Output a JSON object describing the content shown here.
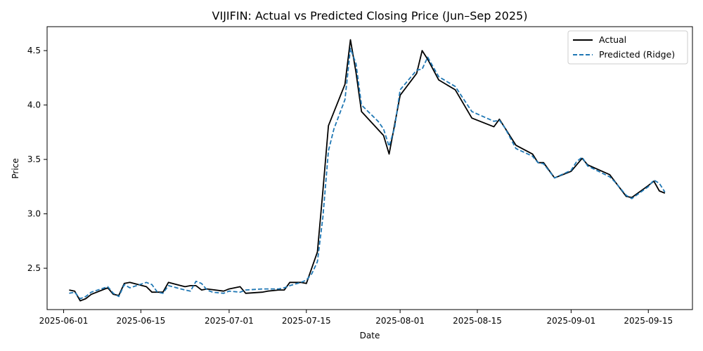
{
  "chart_data": {
    "type": "line",
    "title": "VIJIFIN: Actual vs Predicted Closing Price (Jun–Sep 2025)",
    "xlabel": "Date",
    "ylabel": "Price",
    "x_range": [
      "2025-05-29",
      "2025-09-23"
    ],
    "ylim": [
      2.12,
      4.72
    ],
    "x_ticks": [
      "2025-06-01",
      "2025-06-15",
      "2025-07-01",
      "2025-07-15",
      "2025-08-01",
      "2025-08-15",
      "2025-09-01",
      "2025-09-15"
    ],
    "y_ticks": [
      2.5,
      3.0,
      3.5,
      4.0,
      4.5
    ],
    "y_tick_labels": [
      "2.5",
      "3.0",
      "3.5",
      "4.0",
      "4.5"
    ],
    "grid": false,
    "legend_position": "top-right",
    "series": [
      {
        "name": "Actual",
        "color": "#000000",
        "style": "solid",
        "points": [
          [
            "2025-06-02",
            2.3
          ],
          [
            "2025-06-03",
            2.29
          ],
          [
            "2025-06-04",
            2.2
          ],
          [
            "2025-06-05",
            2.22
          ],
          [
            "2025-06-06",
            2.26
          ],
          [
            "2025-06-09",
            2.32
          ],
          [
            "2025-06-10",
            2.26
          ],
          [
            "2025-06-11",
            2.25
          ],
          [
            "2025-06-12",
            2.36
          ],
          [
            "2025-06-13",
            2.37
          ],
          [
            "2025-06-16",
            2.33
          ],
          [
            "2025-06-17",
            2.28
          ],
          [
            "2025-06-18",
            2.28
          ],
          [
            "2025-06-19",
            2.28
          ],
          [
            "2025-06-20",
            2.37
          ],
          [
            "2025-06-23",
            2.33
          ],
          [
            "2025-06-24",
            2.34
          ],
          [
            "2025-06-25",
            2.34
          ],
          [
            "2025-06-26",
            2.3
          ],
          [
            "2025-06-27",
            2.31
          ],
          [
            "2025-06-30",
            2.29
          ],
          [
            "2025-07-01",
            2.31
          ],
          [
            "2025-07-03",
            2.33
          ],
          [
            "2025-07-04",
            2.27
          ],
          [
            "2025-07-07",
            2.28
          ],
          [
            "2025-07-08",
            2.29
          ],
          [
            "2025-07-10",
            2.3
          ],
          [
            "2025-07-11",
            2.3
          ],
          [
            "2025-07-12",
            2.37
          ],
          [
            "2025-07-14",
            2.37
          ],
          [
            "2025-07-15",
            2.36
          ],
          [
            "2025-07-17",
            2.65
          ],
          [
            "2025-07-18",
            3.21
          ],
          [
            "2025-07-19",
            3.81
          ],
          [
            "2025-07-22",
            4.19
          ],
          [
            "2025-07-23",
            4.6
          ],
          [
            "2025-07-24",
            4.3
          ],
          [
            "2025-07-25",
            3.94
          ],
          [
            "2025-07-29",
            3.72
          ],
          [
            "2025-07-30",
            3.55
          ],
          [
            "2025-08-01",
            4.09
          ],
          [
            "2025-08-04",
            4.29
          ],
          [
            "2025-08-05",
            4.5
          ],
          [
            "2025-08-06",
            4.42
          ],
          [
            "2025-08-08",
            4.23
          ],
          [
            "2025-08-11",
            4.14
          ],
          [
            "2025-08-14",
            3.88
          ],
          [
            "2025-08-18",
            3.8
          ],
          [
            "2025-08-19",
            3.87
          ],
          [
            "2025-08-22",
            3.63
          ],
          [
            "2025-08-25",
            3.55
          ],
          [
            "2025-08-26",
            3.47
          ],
          [
            "2025-08-27",
            3.47
          ],
          [
            "2025-08-29",
            3.33
          ],
          [
            "2025-09-01",
            3.39
          ],
          [
            "2025-09-03",
            3.51
          ],
          [
            "2025-09-04",
            3.45
          ],
          [
            "2025-09-08",
            3.36
          ],
          [
            "2025-09-11",
            3.16
          ],
          [
            "2025-09-12",
            3.15
          ],
          [
            "2025-09-15",
            3.26
          ],
          [
            "2025-09-16",
            3.3
          ],
          [
            "2025-09-17",
            3.21
          ],
          [
            "2025-09-18",
            3.19
          ]
        ]
      },
      {
        "name": "Predicted (Ridge)",
        "color": "#1f77b4",
        "style": "dashed",
        "points": [
          [
            "2025-06-02",
            2.27
          ],
          [
            "2025-06-03",
            2.28
          ],
          [
            "2025-06-04",
            2.22
          ],
          [
            "2025-06-05",
            2.24
          ],
          [
            "2025-06-06",
            2.28
          ],
          [
            "2025-06-09",
            2.33
          ],
          [
            "2025-06-10",
            2.27
          ],
          [
            "2025-06-11",
            2.24
          ],
          [
            "2025-06-12",
            2.35
          ],
          [
            "2025-06-13",
            2.32
          ],
          [
            "2025-06-16",
            2.37
          ],
          [
            "2025-06-17",
            2.35
          ],
          [
            "2025-06-18",
            2.28
          ],
          [
            "2025-06-19",
            2.27
          ],
          [
            "2025-06-20",
            2.34
          ],
          [
            "2025-06-23",
            2.3
          ],
          [
            "2025-06-24",
            2.29
          ],
          [
            "2025-06-25",
            2.38
          ],
          [
            "2025-06-26",
            2.36
          ],
          [
            "2025-06-27",
            2.3
          ],
          [
            "2025-06-28",
            2.28
          ],
          [
            "2025-06-30",
            2.27
          ],
          [
            "2025-07-01",
            2.29
          ],
          [
            "2025-07-03",
            2.28
          ],
          [
            "2025-07-04",
            2.3
          ],
          [
            "2025-07-07",
            2.31
          ],
          [
            "2025-07-08",
            2.31
          ],
          [
            "2025-07-10",
            2.31
          ],
          [
            "2025-07-11",
            2.32
          ],
          [
            "2025-07-12",
            2.34
          ],
          [
            "2025-07-14",
            2.37
          ],
          [
            "2025-07-15",
            2.39
          ],
          [
            "2025-07-16",
            2.45
          ],
          [
            "2025-07-17",
            2.56
          ],
          [
            "2025-07-18",
            2.97
          ],
          [
            "2025-07-19",
            3.58
          ],
          [
            "2025-07-20",
            3.78
          ],
          [
            "2025-07-22",
            4.05
          ],
          [
            "2025-07-23",
            4.52
          ],
          [
            "2025-07-24",
            4.38
          ],
          [
            "2025-07-25",
            4.0
          ],
          [
            "2025-07-28",
            3.85
          ],
          [
            "2025-07-29",
            3.78
          ],
          [
            "2025-07-30",
            3.62
          ],
          [
            "2025-07-31",
            3.79
          ],
          [
            "2025-08-01",
            4.14
          ],
          [
            "2025-08-04",
            4.32
          ],
          [
            "2025-08-05",
            4.33
          ],
          [
            "2025-08-06",
            4.44
          ],
          [
            "2025-08-07",
            4.35
          ],
          [
            "2025-08-08",
            4.26
          ],
          [
            "2025-08-11",
            4.17
          ],
          [
            "2025-08-14",
            3.94
          ],
          [
            "2025-08-18",
            3.85
          ],
          [
            "2025-08-19",
            3.86
          ],
          [
            "2025-08-20",
            3.79
          ],
          [
            "2025-08-22",
            3.6
          ],
          [
            "2025-08-25",
            3.53
          ],
          [
            "2025-08-26",
            3.47
          ],
          [
            "2025-08-27",
            3.46
          ],
          [
            "2025-08-29",
            3.33
          ],
          [
            "2025-09-01",
            3.4
          ],
          [
            "2025-09-02",
            3.48
          ],
          [
            "2025-09-03",
            3.52
          ],
          [
            "2025-09-04",
            3.44
          ],
          [
            "2025-09-08",
            3.34
          ],
          [
            "2025-09-09",
            3.29
          ],
          [
            "2025-09-11",
            3.17
          ],
          [
            "2025-09-12",
            3.14
          ],
          [
            "2025-09-15",
            3.25
          ],
          [
            "2025-09-16",
            3.31
          ],
          [
            "2025-09-17",
            3.28
          ],
          [
            "2025-09-18",
            3.2
          ]
        ]
      }
    ]
  }
}
